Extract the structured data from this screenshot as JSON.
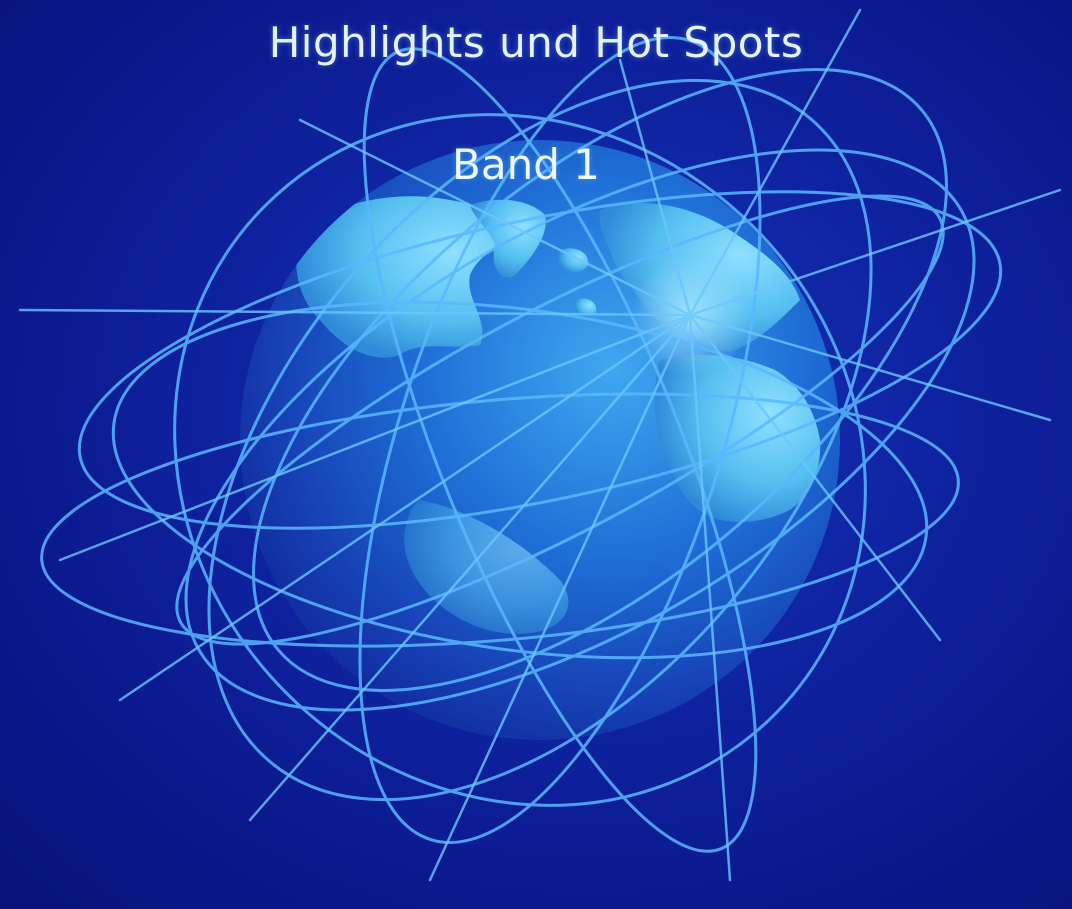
{
  "cover": {
    "title": "Highlights und Hot Spots",
    "subtitle": "Band 1"
  },
  "colors": {
    "background": "#0f24a2",
    "globe_land": "#5cc6f2",
    "orbit_lines": "#5ab8ff",
    "text": "#e6f2ff"
  },
  "artwork": {
    "globe": "globe-icon",
    "lines": "orbit-lines"
  }
}
